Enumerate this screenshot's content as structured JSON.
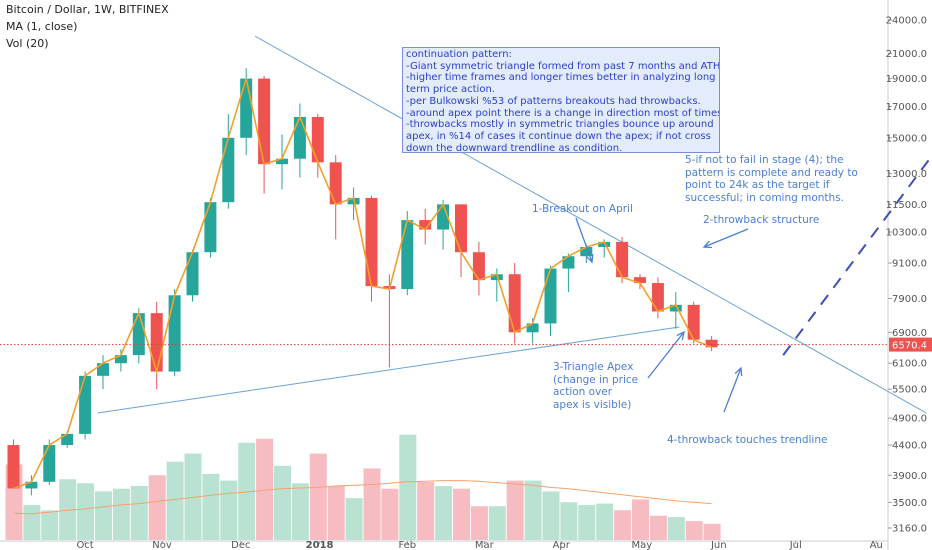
{
  "header": {
    "line1": "Bitcoin / Dollar, 1W, BITFINEX",
    "line2": "MA (1, close)",
    "line3": "Vol (20)"
  },
  "note_lines": [
    "continuation pattern:",
    "-Giant symmetric triangle formed from past 7 months and ATH.",
    "-higher time frames and longer times better in analyzing long",
    "term price action.",
    "-per Bulkowski %53 of patterns breakouts had throwbacks.",
    "-around apex point there is a change in direction most of times.",
    "-throwbacks mostly in symmetric triangles bounce up around",
    "apex, in %14 of cases it continue down the apex; if not cross",
    "down the downward trendline as condition."
  ],
  "annotations": {
    "breakout": "1-Breakout on April",
    "throwback_structure": "2-throwback structure",
    "apex": [
      "3-Triangle Apex",
      "(change in price",
      "action over",
      "apex is visible)"
    ],
    "touch": "4-throwback touches trendline",
    "target": [
      "5-if not to fail in stage (4); the",
      "pattern is complete and ready to",
      "point to 24k as the target if",
      "successful; in coming months."
    ]
  },
  "colors": {
    "up": "#26a69a",
    "down": "#ef5350",
    "up_volume": "#b9e2d3",
    "down_volume": "#f7bcc2",
    "ma_price": "#f2a02a",
    "ma_volume": "#f4a36c",
    "trendline": "#6ba3d8",
    "price_line": "#e53935",
    "price_tag": "#ef5350",
    "annotation": "#4a7fd4",
    "note_text": "#2b3fc9"
  },
  "chart_data": {
    "type": "candlestick",
    "title": "Bitcoin / Dollar, 1W, BITFINEX",
    "y_scale": "log",
    "ylim": [
      3000,
      26000
    ],
    "yticks": [
      3160,
      3500,
      3900,
      4400,
      4900,
      5500,
      6100,
      6900,
      7900,
      9100,
      10300,
      11500,
      13000,
      15000,
      17000,
      19000,
      21000,
      24000
    ],
    "x_labels": [
      "Oct",
      "Nov",
      "Dec",
      "2018",
      "Feb",
      "Mar",
      "Apr",
      "May",
      "Jun",
      "Jul",
      "Au"
    ],
    "x_label_week_index": [
      4,
      8.3,
      12.7,
      17.1,
      22,
      26.3,
      30.6,
      35.1,
      39.4,
      43.7,
      48.2
    ],
    "last_price_label": "6570.4",
    "last_price": 6570.4,
    "weeks": [
      {
        "o": 4400,
        "h": 4500,
        "l": 3700,
        "c": 3700
      },
      {
        "o": 3700,
        "h": 3900,
        "l": 3600,
        "c": 3800
      },
      {
        "o": 3800,
        "h": 4500,
        "l": 3750,
        "c": 4400
      },
      {
        "o": 4400,
        "h": 4650,
        "l": 4350,
        "c": 4600
      },
      {
        "o": 4600,
        "h": 5900,
        "l": 4500,
        "c": 5800
      },
      {
        "o": 5800,
        "h": 6300,
        "l": 5500,
        "c": 6100
      },
      {
        "o": 6100,
        "h": 6450,
        "l": 5900,
        "c": 6300
      },
      {
        "o": 6300,
        "h": 7600,
        "l": 6100,
        "c": 7450
      },
      {
        "o": 7450,
        "h": 7800,
        "l": 5500,
        "c": 5900
      },
      {
        "o": 5900,
        "h": 8200,
        "l": 5800,
        "c": 8000
      },
      {
        "o": 8000,
        "h": 9600,
        "l": 7800,
        "c": 9500
      },
      {
        "o": 9500,
        "h": 11800,
        "l": 9300,
        "c": 11600
      },
      {
        "o": 11600,
        "h": 16500,
        "l": 11300,
        "c": 15000
      },
      {
        "o": 15000,
        "h": 19800,
        "l": 14000,
        "c": 19000
      },
      {
        "o": 19000,
        "h": 19200,
        "l": 12000,
        "c": 13500
      },
      {
        "o": 13500,
        "h": 15200,
        "l": 12200,
        "c": 13800
      },
      {
        "o": 13800,
        "h": 17200,
        "l": 12800,
        "c": 16300
      },
      {
        "o": 16300,
        "h": 16500,
        "l": 12800,
        "c": 13600
      },
      {
        "o": 13600,
        "h": 14000,
        "l": 10000,
        "c": 11500
      },
      {
        "o": 11500,
        "h": 12300,
        "l": 10800,
        "c": 11800
      },
      {
        "o": 11800,
        "h": 11900,
        "l": 7800,
        "c": 8300
      },
      {
        "o": 8300,
        "h": 8700,
        "l": 6000,
        "c": 8200
      },
      {
        "o": 8200,
        "h": 11200,
        "l": 8000,
        "c": 10800
      },
      {
        "o": 10800,
        "h": 11300,
        "l": 9800,
        "c": 10400
      },
      {
        "o": 10400,
        "h": 11700,
        "l": 9600,
        "c": 11500
      },
      {
        "o": 11500,
        "h": 11500,
        "l": 8600,
        "c": 9500
      },
      {
        "o": 9500,
        "h": 9900,
        "l": 8000,
        "c": 8500
      },
      {
        "o": 8500,
        "h": 8900,
        "l": 7800,
        "c": 8700
      },
      {
        "o": 8700,
        "h": 9100,
        "l": 6600,
        "c": 6900
      },
      {
        "o": 6900,
        "h": 7300,
        "l": 6600,
        "c": 7150
      },
      {
        "o": 7150,
        "h": 9000,
        "l": 6800,
        "c": 8900
      },
      {
        "o": 8900,
        "h": 9450,
        "l": 8100,
        "c": 9350
      },
      {
        "o": 9350,
        "h": 9800,
        "l": 9100,
        "c": 9700
      },
      {
        "o": 9700,
        "h": 10000,
        "l": 9300,
        "c": 9900
      },
      {
        "o": 9900,
        "h": 10100,
        "l": 8400,
        "c": 8600
      },
      {
        "o": 8600,
        "h": 8700,
        "l": 8200,
        "c": 8400
      },
      {
        "o": 8400,
        "h": 8600,
        "l": 7300,
        "c": 7500
      },
      {
        "o": 7500,
        "h": 8100,
        "l": 7000,
        "c": 7700
      },
      {
        "o": 7700,
        "h": 7800,
        "l": 6600,
        "c": 6700
      },
      {
        "o": 6700,
        "h": 6800,
        "l": 6400,
        "c": 6500
      }
    ],
    "volume": {
      "max": 100,
      "values": [
        56,
        26,
        22,
        45,
        42,
        36,
        38,
        40,
        48,
        58,
        64,
        49,
        44,
        72,
        75,
        55,
        42,
        64,
        40,
        31,
        53,
        38,
        78,
        43,
        40,
        38,
        25,
        25,
        44,
        44,
        36,
        28,
        26,
        27,
        22,
        30,
        18,
        17,
        14,
        12
      ],
      "ma_values": [
        20,
        19.5,
        20.5,
        22,
        23,
        24.5,
        26,
        27,
        28.5,
        30,
        31.5,
        33,
        34.5,
        35.5,
        37,
        38,
        38.5,
        39,
        40,
        40.5,
        41,
        42,
        43,
        43.5,
        44,
        44,
        43.5,
        42.5,
        41.5,
        40.5,
        39,
        38,
        36.5,
        35,
        33.5,
        32,
        30.5,
        29,
        28,
        27
      ]
    },
    "trendlines": [
      {
        "name": "upper",
        "from": {
          "week": 13.5,
          "value": 22500
        },
        "to": {
          "week": 51,
          "value": 5000
        }
      },
      {
        "name": "lower",
        "from": {
          "week": 4.7,
          "value": 5000
        },
        "to": {
          "week": 37.2,
          "value": 7050
        }
      }
    ],
    "projection": {
      "from": {
        "week": 43,
        "value": 6300
      },
      "to": {
        "week": 52.4,
        "value": 15500
      }
    }
  }
}
